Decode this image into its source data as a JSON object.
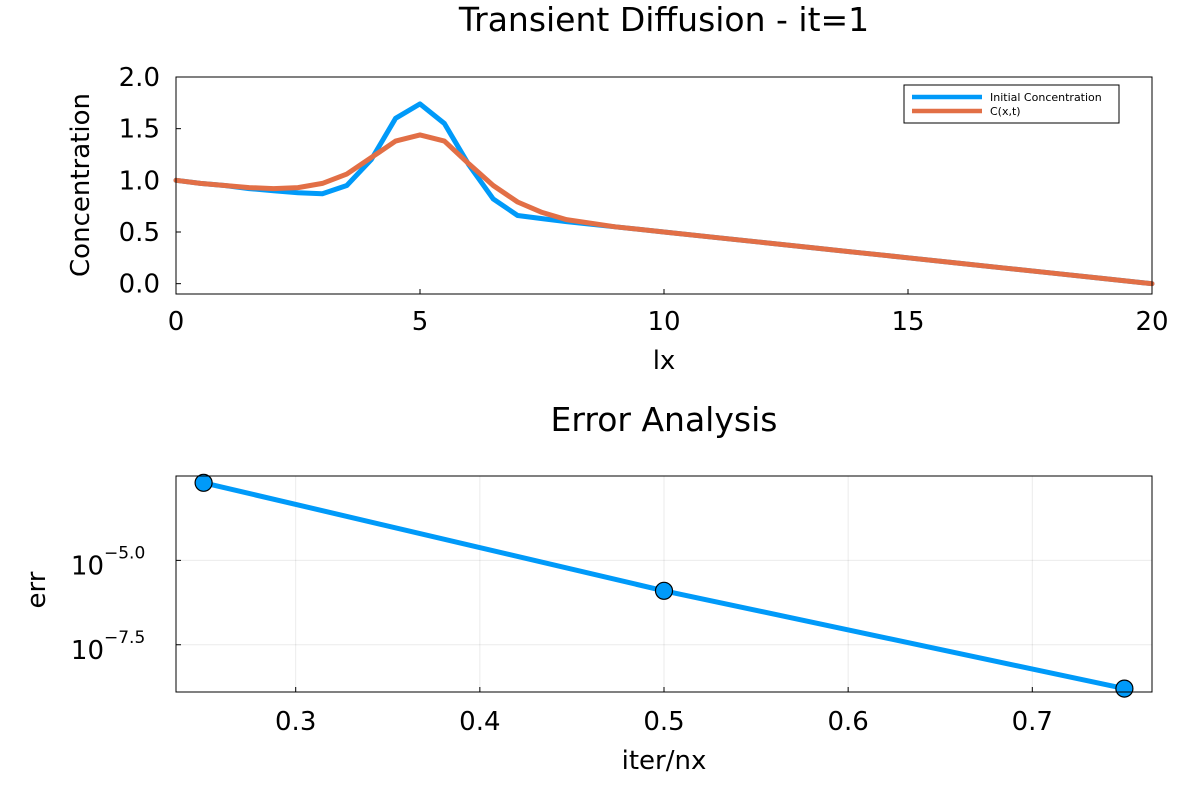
{
  "chart_data": [
    {
      "type": "line",
      "title": "Transient Diffusion  - it=1",
      "xlabel": "lx",
      "ylabel": "Concentration",
      "xlim": [
        0,
        20
      ],
      "ylim": [
        -0.1,
        2.0
      ],
      "xticks": [
        "0",
        "5",
        "10",
        "15",
        "20"
      ],
      "yticks": [
        "0.0",
        "0.5",
        "1.0",
        "1.5",
        "2.0"
      ],
      "grid": false,
      "legend_position": "top-right",
      "colors": {
        "Initial Concentration": "#009af9",
        "C(x,t)": "#e26f46"
      },
      "x": [
        0,
        0.5,
        1,
        1.5,
        2,
        2.5,
        3,
        3.5,
        4,
        4.5,
        5,
        5.5,
        6,
        6.5,
        7,
        7.5,
        8,
        9,
        10,
        11,
        12,
        13,
        14,
        15,
        16,
        17,
        18,
        19,
        20
      ],
      "series": [
        {
          "name": "Initial Concentration",
          "values": [
            1.0,
            0.97,
            0.95,
            0.92,
            0.9,
            0.88,
            0.87,
            0.95,
            1.2,
            1.6,
            1.74,
            1.55,
            1.15,
            0.82,
            0.66,
            0.63,
            0.6,
            0.55,
            0.5,
            0.45,
            0.4,
            0.35,
            0.3,
            0.25,
            0.2,
            0.15,
            0.1,
            0.05,
            0.0
          ]
        },
        {
          "name": "C(x,t)",
          "values": [
            1.0,
            0.97,
            0.95,
            0.93,
            0.92,
            0.93,
            0.97,
            1.06,
            1.22,
            1.38,
            1.44,
            1.38,
            1.16,
            0.95,
            0.79,
            0.69,
            0.62,
            0.55,
            0.5,
            0.45,
            0.4,
            0.35,
            0.3,
            0.25,
            0.2,
            0.15,
            0.1,
            0.05,
            0.0
          ]
        }
      ]
    },
    {
      "type": "line",
      "title": "Error Analysis",
      "xlabel": "iter/nx",
      "ylabel": "err",
      "xlim": [
        0.235,
        0.765
      ],
      "xticks": [
        "0.3",
        "0.4",
        "0.5",
        "0.6",
        "0.7"
      ],
      "y_scale": "log10",
      "y_tick_base": "10",
      "y_tick_exponents": [
        "−5.0",
        "−7.5"
      ],
      "ylim_log10": [
        -8.9,
        -2.5
      ],
      "grid": true,
      "markers": true,
      "colors": {
        "err": "#009af9"
      },
      "x": [
        0.25,
        0.5,
        0.75
      ],
      "series": [
        {
          "log10_values": [
            -2.7,
            -5.9,
            -8.8
          ]
        }
      ]
    }
  ]
}
